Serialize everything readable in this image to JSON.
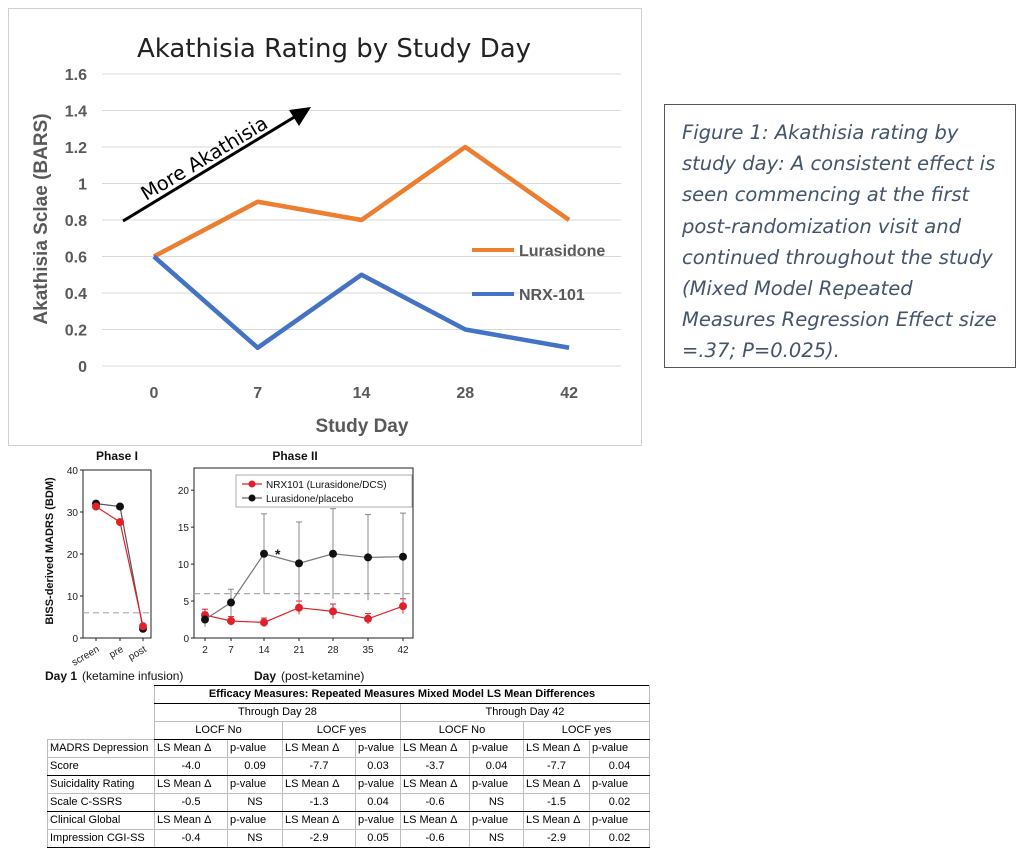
{
  "chart_data": [
    {
      "type": "line",
      "title": "Akathisia Rating by Study Day",
      "xlabel": "Study Day",
      "ylabel": "Akathisia Sclae (BARS)",
      "categories": [
        "0",
        "7",
        "14",
        "28",
        "42"
      ],
      "series": [
        {
          "name": "Lurasidone",
          "values": [
            0.6,
            0.9,
            0.8,
            1.2,
            0.8
          ],
          "color": "#ed7d31"
        },
        {
          "name": "NRX-101",
          "values": [
            0.6,
            0.1,
            0.5,
            0.2,
            0.1
          ],
          "color": "#4472c4"
        }
      ],
      "ylim": [
        0,
        1.6
      ],
      "yticks": [
        "0",
        "0.2",
        "0.4",
        "0.6",
        "0.8",
        "1",
        "1.2",
        "1.4",
        "1.6"
      ],
      "grid": true,
      "legend": "right",
      "annotation": "More Akathisia"
    },
    {
      "type": "line",
      "title": "Phase I",
      "ylabel": "BISS-derived MADRS (BDM)",
      "xlabel": "Day 1",
      "xlabel_note": "(ketamine infusion)",
      "categories": [
        "screen",
        "pre",
        "post"
      ],
      "yticks": [
        "0",
        "10",
        "20",
        "30",
        "40"
      ],
      "ylim": [
        0,
        40
      ],
      "reference_line": 6,
      "series": [
        {
          "name": "NRX101 (Lurasidone/DCS)",
          "values": [
            31.3,
            27.6,
            2.8
          ],
          "color": "#e0202a"
        },
        {
          "name": "Lurasidone/placebo",
          "values": [
            32,
            31.3,
            2.2
          ],
          "color": "#111111"
        }
      ]
    },
    {
      "type": "line",
      "title": "Phase II",
      "xlabel": "Day",
      "xlabel_note": "(post-ketamine)",
      "categories": [
        "2",
        "7",
        "14",
        "21",
        "28",
        "35",
        "42"
      ],
      "yticks": [
        "0",
        "5",
        "10",
        "15",
        "20"
      ],
      "ylim": [
        0,
        23
      ],
      "reference_line": 6,
      "significance_marker": "*",
      "legend": "top-right",
      "series": [
        {
          "name": "NRX101 (Lurasidone/DCS)",
          "values": [
            3.1,
            2.3,
            2.1,
            4.1,
            3.6,
            2.6,
            4.3
          ],
          "errors": [
            0.8,
            0.6,
            0.6,
            0.9,
            1.0,
            0.7,
            1.0
          ],
          "color": "#e0202a"
        },
        {
          "name": "Lurasidone/placebo",
          "values": [
            2.5,
            4.8,
            11.4,
            10.1,
            11.4,
            10.9,
            11.0
          ],
          "errors": [
            1.0,
            1.8,
            5.4,
            5.6,
            6.1,
            5.8,
            5.9
          ],
          "color": "#111111"
        }
      ]
    }
  ],
  "caption": "Figure 1: Akathisia rating by study day: A consistent effect is seen commencing at the first post-randomization visit and continued throughout the study (Mixed Model Repeated Measures Regression Effect size =.37; P=0.025).",
  "table": {
    "title": "Efficacy Measures: Repeated Measures Mixed Model LS Mean Differences",
    "periods": [
      "Through Day 28",
      "Through Day 42"
    ],
    "locf": [
      "LOCF No",
      "LOCF yes",
      "LOCF No",
      "LOCF yes"
    ],
    "col_ls": "LS Mean Δ",
    "col_p": "p-value",
    "rows": [
      {
        "label1": "MADRS Depression",
        "label2": "Score",
        "values": [
          "-4.0",
          "0.09",
          "-7.7",
          "0.03",
          "-3.7",
          "0.04",
          "-7.7",
          "0.04"
        ]
      },
      {
        "label1": "Suicidality Rating",
        "label2": "Scale C-SSRS",
        "values": [
          "-0.5",
          "NS",
          "-1.3",
          "0.04",
          "-0.6",
          "NS",
          "-1.5",
          "0.02"
        ]
      },
      {
        "label1": "Clinical Global",
        "label2": "Impression CGI-SS",
        "values": [
          "-0.4",
          "NS",
          "-2.9",
          "0.05",
          "-0.6",
          "NS",
          "-2.9",
          "0.02"
        ]
      }
    ]
  }
}
